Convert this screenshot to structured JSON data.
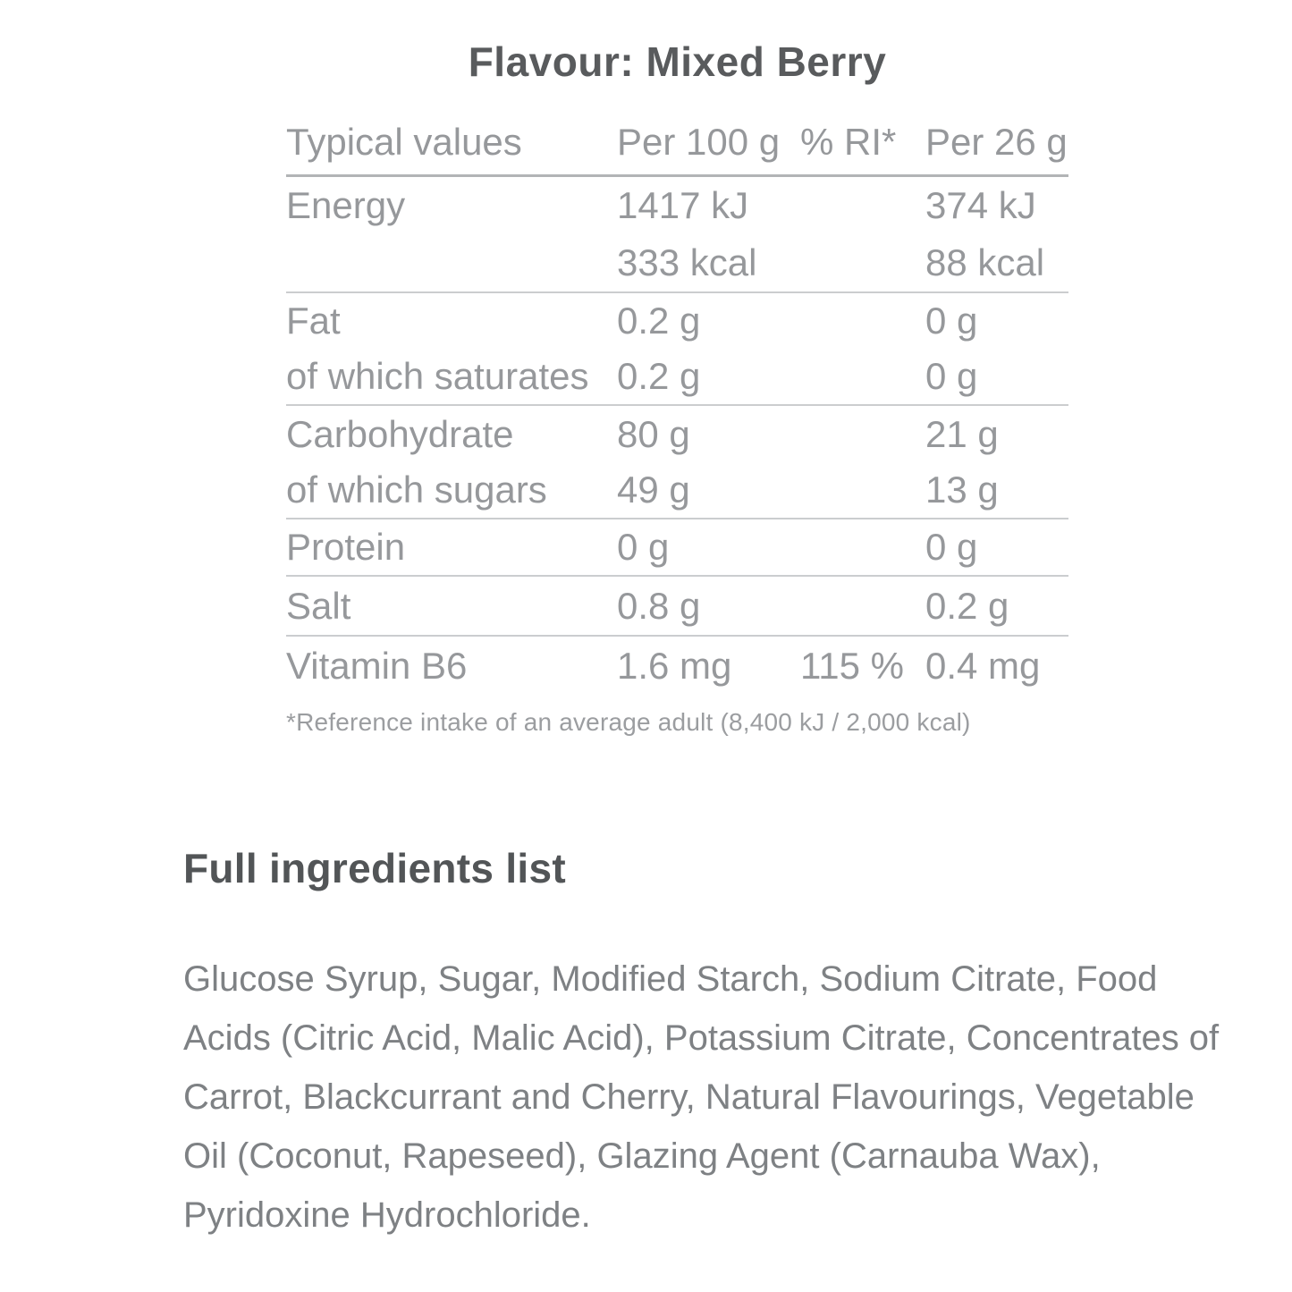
{
  "page": {
    "title": "Flavour: Mixed Berry"
  },
  "nutrition_table": {
    "columns": [
      "Typical values",
      "Per 100 g",
      "% RI*",
      "Per 26 g"
    ],
    "rows": [
      {
        "label": "Energy",
        "per100": "1417 kJ",
        "ri": "",
        "per26": "374 kJ"
      },
      {
        "label": "",
        "per100": "333 kcal",
        "ri": "",
        "per26": "88 kcal"
      },
      {
        "label": "Fat",
        "per100": "0.2 g",
        "ri": "",
        "per26": "0 g"
      },
      {
        "label": "of which saturates",
        "per100": "0.2 g",
        "ri": "",
        "per26": "0 g"
      },
      {
        "label": "Carbohydrate",
        "per100": "80 g",
        "ri": "",
        "per26": "21 g"
      },
      {
        "label": "of which sugars",
        "per100": "49 g",
        "ri": "",
        "per26": "13 g"
      },
      {
        "label": "Protein",
        "per100": "0 g",
        "ri": "",
        "per26": "0 g"
      },
      {
        "label": "Salt",
        "per100": "0.8 g",
        "ri": "",
        "per26": "0.2 g"
      },
      {
        "label": "Vitamin B6",
        "per100": "1.6 mg",
        "ri": "115 %",
        "per26": "0.4 mg"
      }
    ],
    "footnote": "*Reference intake of an average adult (8,400 kJ / 2,000 kcal)"
  },
  "ingredients": {
    "heading": "Full ingredients list",
    "text": "Glucose Syrup, Sugar, Modified Starch, Sodium Citrate, Food Acids (Citric Acid, Malic Acid), Potassium Citrate, Concentrates of Carrot, Blackcurrant and Cherry, Natural Flavourings, Vegetable Oil (Coconut, Rapeseed), Glazing Agent (Carnauba Wax), Pyridoxine Hydrochloride."
  },
  "colors": {
    "heading_text": "#595b5d",
    "table_text": "#96989b",
    "body_text": "#7e8184",
    "rule_strong": "#b2b4b6",
    "rule_light": "#cbcdcf",
    "background": "#ffffff"
  }
}
